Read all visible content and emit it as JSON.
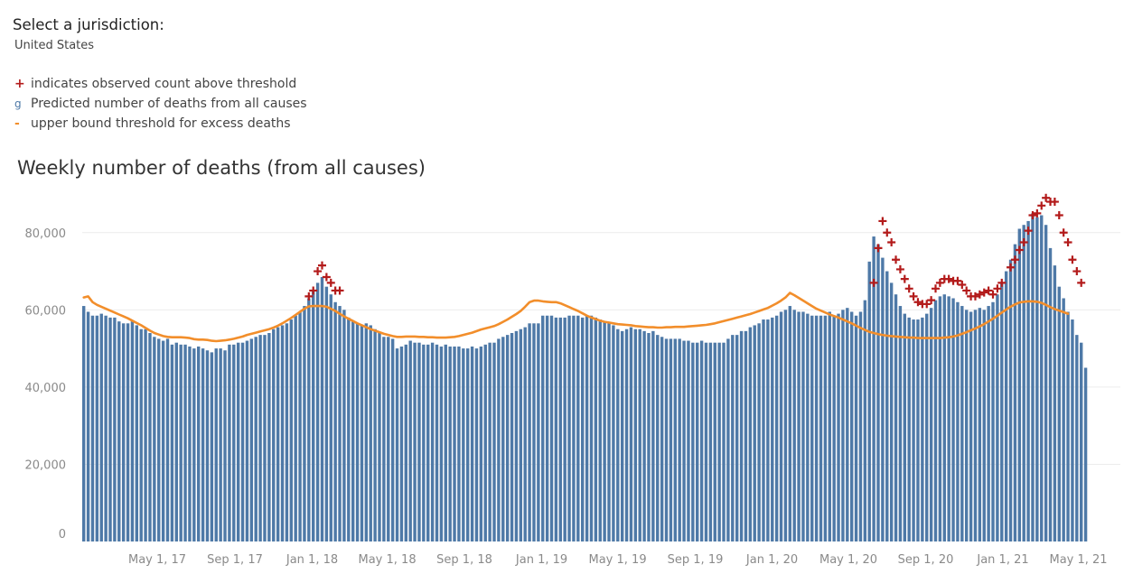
{
  "filter": {
    "label": "Select a jurisdiction:",
    "value": "United States"
  },
  "legend": [
    {
      "symbol": "+",
      "label": "indicates observed count above threshold",
      "color": "#b31b1b",
      "icon": "plus-icon"
    },
    {
      "symbol": "g",
      "label": "Predicted number of deaths from all causes",
      "color": "#4e79a7",
      "icon": "bar-swatch-icon"
    },
    {
      "symbol": "-",
      "label": "upper bound threshold for excess deaths",
      "color": "#f28e2b",
      "icon": "dash-icon"
    }
  ],
  "colors": {
    "bar": "#4e79a7",
    "threshold": "#f28e2b",
    "marker": "#b31b1b",
    "grid": "#ececec",
    "axis_text": "#8a8a8a"
  },
  "chart_data": {
    "type": "bar",
    "title": "Weekly number of deaths (from all causes)",
    "xlabel": "",
    "ylabel": "",
    "ylim": [
      0,
      90000
    ],
    "yticks": [
      0,
      20000,
      40000,
      60000,
      80000
    ],
    "ytick_labels": [
      "0",
      "20,000",
      "40,000",
      "60,000",
      "80,000"
    ],
    "x_tick_labels": [
      "May 1, 17",
      "Sep 1, 17",
      "Jan 1, 18",
      "May 1, 18",
      "Sep 1, 18",
      "Jan 1, 19",
      "May 1, 19",
      "Sep 1, 19",
      "Jan 1, 20",
      "May 1, 20",
      "Sep 1, 20",
      "Jan 1, 21",
      "May 1, 21"
    ],
    "x_tick_week_index": [
      17,
      34.6,
      52.1,
      69.1,
      86.6,
      104.1,
      121.3,
      138.9,
      156.3,
      173.6,
      191.1,
      208.6,
      225.7
    ],
    "grid": true,
    "series": [
      {
        "name": "Predicted number of deaths from all causes",
        "type": "bar",
        "values": [
          61000,
          59500,
          58500,
          58500,
          59000,
          58500,
          58000,
          58000,
          57000,
          56500,
          56500,
          57000,
          56000,
          55000,
          55000,
          54000,
          53000,
          52500,
          52000,
          52500,
          51000,
          51500,
          51000,
          51000,
          50500,
          50000,
          50500,
          50000,
          49500,
          49000,
          50000,
          50000,
          49500,
          51000,
          51000,
          51500,
          51500,
          52000,
          52500,
          53000,
          53500,
          53500,
          54000,
          55000,
          55500,
          56000,
          56500,
          57500,
          58500,
          59500,
          61000,
          63000,
          65000,
          67000,
          68500,
          66000,
          64000,
          62000,
          61000,
          60000,
          58000,
          57000,
          56500,
          56000,
          56500,
          56000,
          55000,
          54000,
          53000,
          53000,
          52500,
          50000,
          50500,
          51000,
          52000,
          51500,
          51500,
          51000,
          51000,
          51500,
          51000,
          50500,
          51000,
          50500,
          50500,
          50500,
          50000,
          50000,
          50500,
          50000,
          50500,
          51000,
          51500,
          51500,
          52500,
          53000,
          53500,
          54000,
          54500,
          55000,
          55500,
          56500,
          56500,
          56500,
          58500,
          58500,
          58500,
          58000,
          58000,
          58000,
          58500,
          58500,
          58500,
          58000,
          58500,
          58500,
          58000,
          57500,
          57000,
          56500,
          56000,
          55000,
          54500,
          55000,
          55500,
          55000,
          55000,
          54500,
          54000,
          54500,
          53500,
          53000,
          52500,
          52500,
          52500,
          52500,
          52000,
          52000,
          51500,
          51500,
          52000,
          51500,
          51500,
          51500,
          51500,
          51500,
          52500,
          53500,
          53500,
          54500,
          54500,
          55500,
          56000,
          56500,
          57500,
          57500,
          58000,
          58500,
          59500,
          60000,
          61000,
          60000,
          59500,
          59500,
          59000,
          58500,
          58500,
          58500,
          58500,
          59500,
          58500,
          59000,
          60000,
          60500,
          59500,
          58500,
          59500,
          62500,
          72500,
          79000,
          77000,
          73500,
          70000,
          67000,
          64000,
          61000,
          59000,
          58000,
          57500,
          57500,
          58000,
          59000,
          60500,
          62500,
          63500,
          64000,
          63500,
          63000,
          62000,
          61000,
          60000,
          59500,
          60000,
          60500,
          60000,
          61000,
          62000,
          64000,
          67000,
          70000,
          73000,
          77000,
          81000,
          82000,
          83000,
          85000,
          84000,
          84500,
          82000,
          76000,
          71500,
          66000,
          63000,
          59500,
          57500,
          53500,
          51500,
          45000
        ]
      },
      {
        "name": "upper bound threshold for excess deaths",
        "type": "line",
        "values": [
          63200,
          63500,
          62000,
          61300,
          60800,
          60300,
          59800,
          59300,
          58800,
          58300,
          57800,
          57200,
          56600,
          56000,
          55300,
          54600,
          54000,
          53600,
          53200,
          53000,
          52900,
          52900,
          52900,
          52800,
          52700,
          52400,
          52300,
          52300,
          52200,
          52000,
          51900,
          52000,
          52100,
          52300,
          52500,
          52800,
          53100,
          53500,
          53800,
          54100,
          54400,
          54700,
          55000,
          55400,
          55900,
          56500,
          57200,
          57900,
          58700,
          59500,
          60300,
          60900,
          61000,
          61000,
          61000,
          60800,
          60300,
          59700,
          59000,
          58300,
          57700,
          57100,
          56500,
          56000,
          55500,
          55000,
          54600,
          54200,
          53800,
          53500,
          53200,
          53000,
          53000,
          53100,
          53100,
          53100,
          53000,
          53000,
          52900,
          52900,
          52800,
          52800,
          52800,
          52900,
          53000,
          53200,
          53500,
          53800,
          54100,
          54500,
          54900,
          55200,
          55500,
          55800,
          56300,
          56900,
          57500,
          58200,
          58900,
          59700,
          60800,
          62000,
          62400,
          62400,
          62200,
          62100,
          62000,
          62000,
          61700,
          61200,
          60700,
          60200,
          59700,
          59100,
          58500,
          58000,
          57600,
          57200,
          56900,
          56700,
          56500,
          56300,
          56200,
          56100,
          56000,
          55800,
          55700,
          55600,
          55500,
          55500,
          55400,
          55400,
          55500,
          55500,
          55600,
          55600,
          55600,
          55700,
          55800,
          55900,
          56000,
          56100,
          56300,
          56500,
          56800,
          57100,
          57400,
          57700,
          58000,
          58300,
          58600,
          58900,
          59300,
          59700,
          60100,
          60500,
          61100,
          61700,
          62400,
          63200,
          64400,
          63800,
          63100,
          62400,
          61700,
          61000,
          60300,
          59800,
          59300,
          58800,
          58400,
          58000,
          57500,
          57000,
          56500,
          55900,
          55300,
          54800,
          54300,
          54000,
          53700,
          53500,
          53300,
          53200,
          53100,
          53000,
          52900,
          52800,
          52800,
          52700,
          52700,
          52700,
          52700,
          52700,
          52700,
          52800,
          52900,
          53100,
          53400,
          53800,
          54200,
          54700,
          55200,
          55700,
          56300,
          57000,
          57700,
          58500,
          59300,
          60100,
          60800,
          61400,
          61900,
          62100,
          62200,
          62200,
          62100,
          61800,
          61300,
          60700,
          60200,
          59800,
          59400,
          59000
        ]
      },
      {
        "name": "observed count above threshold",
        "type": "scatter",
        "marker": "+",
        "points": [
          [
            51,
            63500
          ],
          [
            52,
            65000
          ],
          [
            53,
            70000
          ],
          [
            54,
            71500
          ],
          [
            55,
            68500
          ],
          [
            56,
            67000
          ],
          [
            57,
            65000
          ],
          [
            58,
            65000
          ],
          [
            179,
            67000
          ],
          [
            180,
            76000
          ],
          [
            181,
            83000
          ],
          [
            182,
            80000
          ],
          [
            183,
            77500
          ],
          [
            184,
            73000
          ],
          [
            185,
            70500
          ],
          [
            186,
            68000
          ],
          [
            187,
            65500
          ],
          [
            188,
            63500
          ],
          [
            189,
            62000
          ],
          [
            190,
            61500
          ],
          [
            191,
            61500
          ],
          [
            192,
            62500
          ],
          [
            193,
            65500
          ],
          [
            194,
            67000
          ],
          [
            195,
            68000
          ],
          [
            196,
            68000
          ],
          [
            197,
            67500
          ],
          [
            198,
            67500
          ],
          [
            199,
            66500
          ],
          [
            200,
            65000
          ],
          [
            201,
            63500
          ],
          [
            202,
            63500
          ],
          [
            203,
            64000
          ],
          [
            204,
            64500
          ],
          [
            205,
            65000
          ],
          [
            206,
            64000
          ],
          [
            207,
            65500
          ],
          [
            208,
            67000
          ],
          [
            210,
            71000
          ],
          [
            211,
            73000
          ],
          [
            212,
            75500
          ],
          [
            213,
            77500
          ],
          [
            214,
            80500
          ],
          [
            215,
            84500
          ],
          [
            216,
            85000
          ],
          [
            217,
            87000
          ],
          [
            218,
            89000
          ],
          [
            219,
            88000
          ],
          [
            220,
            88000
          ],
          [
            221,
            84500
          ],
          [
            222,
            80000
          ],
          [
            223,
            77500
          ],
          [
            224,
            73000
          ],
          [
            225,
            70000
          ],
          [
            226,
            67000
          ]
        ]
      }
    ]
  }
}
